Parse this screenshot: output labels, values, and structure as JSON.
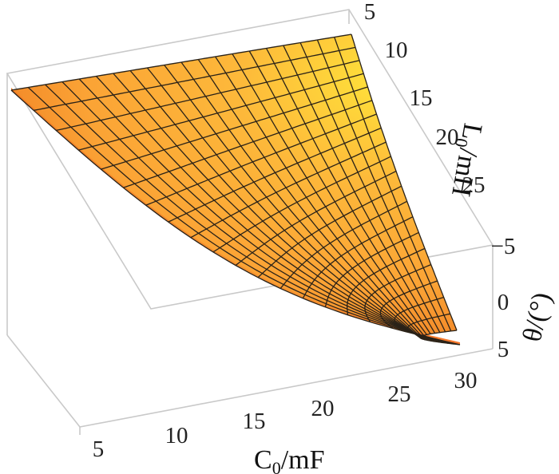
{
  "chart_data": {
    "type": "surface3d",
    "axes": {
      "x": {
        "label_main": "C",
        "label_sub": "0",
        "label_unit": "/mF",
        "ticks": [
          "5",
          "10",
          "15",
          "20",
          "25",
          "30"
        ],
        "range": [
          5,
          30
        ]
      },
      "y": {
        "label_main": "L",
        "label_sub": "0",
        "label_unit": "/mH",
        "ticks": [
          "5",
          "10",
          "15",
          "20",
          "25"
        ],
        "range": [
          5,
          28
        ]
      },
      "z": {
        "label": "θ/(°)",
        "ticks": [
          "−5",
          "0",
          "5"
        ],
        "range": [
          -5,
          5
        ]
      }
    },
    "mesh": {
      "x_lines": 21,
      "y_lines": 21
    },
    "colors": {
      "surface_high": "#ffe23a",
      "surface_mid": "#fba335",
      "surface_low": "#ee7b22",
      "mesh": "#2a2218",
      "box": "#c9c9c9"
    }
  }
}
